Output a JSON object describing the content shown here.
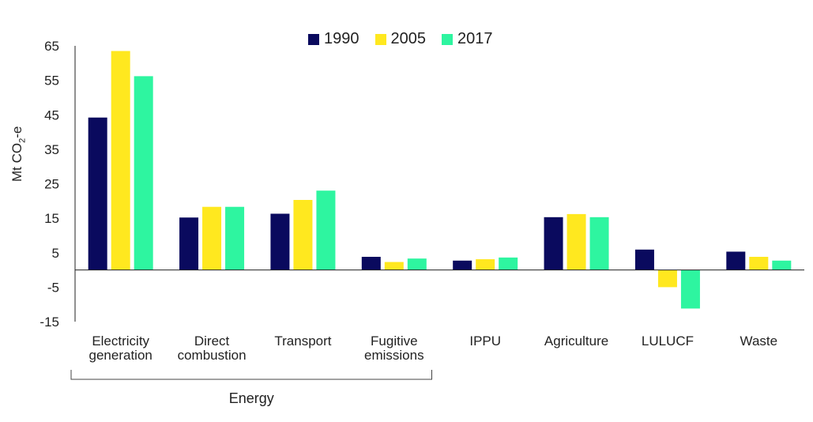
{
  "chart_data": {
    "type": "bar",
    "ylabel_main": "Mt CO",
    "ylabel_sub": "2",
    "ylabel_suffix": "-e",
    "yticks": [
      65,
      55,
      45,
      35,
      25,
      15,
      5,
      -5,
      -15
    ],
    "ylim": [
      -15,
      65
    ],
    "categories": [
      [
        "Electricity",
        "generation"
      ],
      [
        "Direct",
        "combustion"
      ],
      [
        "Transport"
      ],
      [
        "Fugitive",
        "emissions"
      ],
      [
        "IPPU"
      ],
      [
        "Agriculture"
      ],
      [
        "LULUCF"
      ],
      [
        "Waste"
      ]
    ],
    "series": [
      {
        "name": "1990",
        "color": "#0a0a5e",
        "values": [
          44.2,
          15.2,
          16.3,
          3.8,
          2.7,
          15.3,
          5.9,
          5.3
        ]
      },
      {
        "name": "2005",
        "color": "#ffe81f",
        "values": [
          63.5,
          18.3,
          20.3,
          2.3,
          3.1,
          16.2,
          -5.0,
          3.8
        ]
      },
      {
        "name": "2017",
        "color": "#2ef5a0",
        "values": [
          56.2,
          18.3,
          23.0,
          3.3,
          3.6,
          15.3,
          -11.2,
          2.7
        ]
      }
    ],
    "grid": false,
    "legend_position": "top",
    "group_annotation": {
      "label": "Energy",
      "spans_categories": [
        0,
        3
      ]
    }
  }
}
